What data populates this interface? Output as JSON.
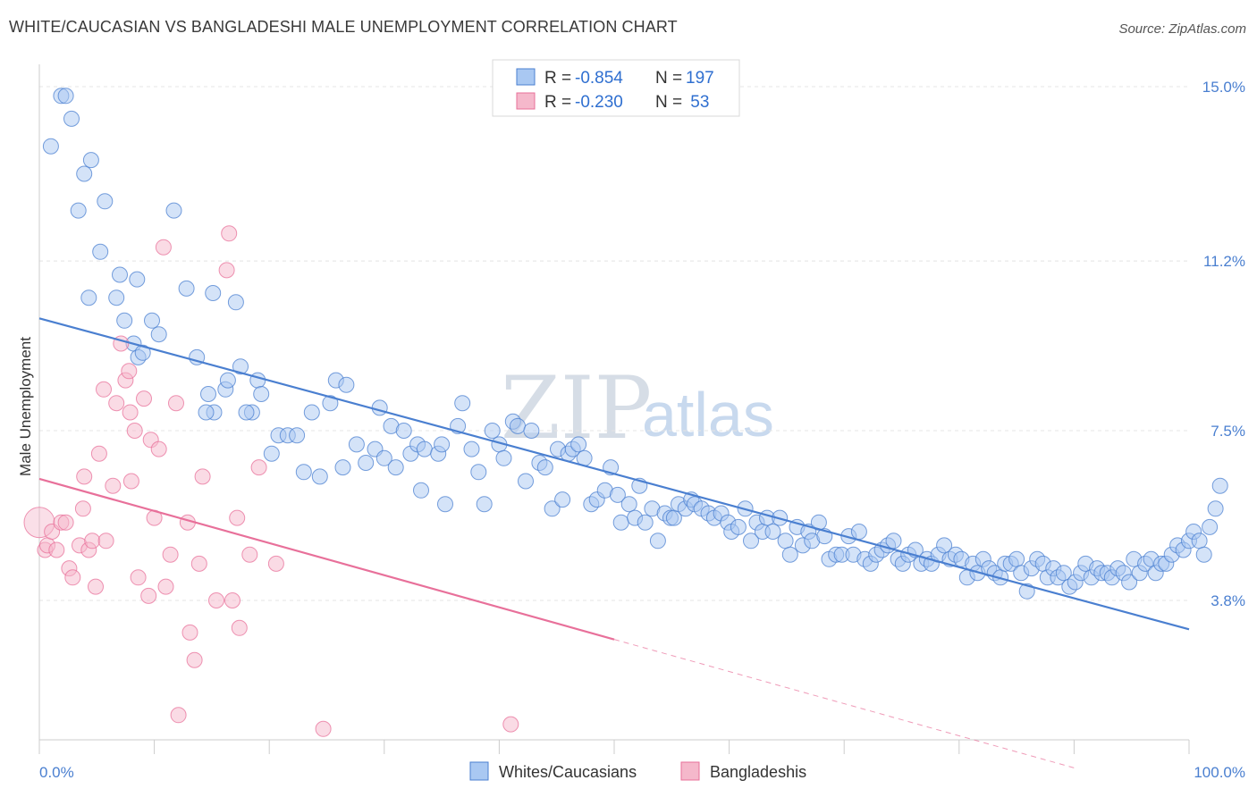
{
  "title": "WHITE/CAUCASIAN VS BANGLADESHI MALE UNEMPLOYMENT CORRELATION CHART",
  "source": "Source: ZipAtlas.com",
  "watermark": {
    "zip": "ZIP",
    "atlas": "atlas"
  },
  "legend_top": [
    {
      "r_label": "R = ",
      "r_value": "-0.854",
      "n_label": "N = ",
      "n_value": "197",
      "color": "#a9c8f2"
    },
    {
      "r_label": "R = ",
      "r_value": "-0.230",
      "n_label": "N = ",
      "n_value": " 53",
      "color": "#f5b8cb"
    }
  ],
  "legend_bottom": [
    "Whites/Caucasians",
    "Bangladeshis"
  ],
  "chart_data": {
    "type": "scatter",
    "title": "WHITE/CAUCASIAN VS BANGLADESHI MALE UNEMPLOYMENT CORRELATION CHART",
    "xlabel": "",
    "ylabel": "Male Unemployment",
    "xlim": [
      0,
      100
    ],
    "ylim": [
      0.0,
      15.5
    ],
    "x_tick_labels": [
      "0.0%",
      "100.0%"
    ],
    "y_ticks": [
      3.8,
      7.5,
      11.2,
      15.0
    ],
    "y_tick_labels": [
      "3.8%",
      "7.5%",
      "11.2%",
      "15.0%"
    ],
    "grid": true,
    "legend_position": "top-center",
    "series": [
      {
        "name": "Whites/Caucasians",
        "color": "#4a7fd0",
        "fill": "#a9c8f2",
        "trend": {
          "x": [
            0,
            100
          ],
          "y": [
            9.95,
            3.17
          ]
        },
        "points": [
          [
            1.0,
            13.7
          ],
          [
            1.9,
            14.8
          ],
          [
            2.3,
            14.8
          ],
          [
            2.8,
            14.3
          ],
          [
            3.4,
            12.3
          ],
          [
            3.9,
            13.1
          ],
          [
            4.5,
            13.4
          ],
          [
            5.3,
            11.4
          ],
          [
            5.7,
            12.5
          ],
          [
            4.3,
            10.4
          ],
          [
            6.7,
            10.4
          ],
          [
            7.0,
            10.9
          ],
          [
            7.4,
            9.9
          ],
          [
            8.5,
            10.8
          ],
          [
            8.2,
            9.4
          ],
          [
            9.8,
            9.9
          ],
          [
            10.4,
            9.6
          ],
          [
            8.6,
            9.1
          ],
          [
            9.0,
            9.2
          ],
          [
            11.7,
            12.3
          ],
          [
            12.8,
            10.6
          ],
          [
            13.7,
            9.1
          ],
          [
            14.7,
            8.3
          ],
          [
            15.2,
            7.9
          ],
          [
            16.2,
            8.4
          ],
          [
            14.5,
            7.9
          ],
          [
            15.1,
            10.5
          ],
          [
            17.1,
            10.3
          ],
          [
            16.4,
            8.6
          ],
          [
            17.5,
            8.9
          ],
          [
            18.5,
            7.9
          ],
          [
            18.0,
            7.9
          ],
          [
            19.0,
            8.6
          ],
          [
            19.3,
            8.3
          ],
          [
            20.2,
            7.0
          ],
          [
            20.8,
            7.4
          ],
          [
            21.6,
            7.4
          ],
          [
            22.4,
            7.4
          ],
          [
            23.0,
            6.6
          ],
          [
            23.7,
            7.9
          ],
          [
            24.4,
            6.5
          ],
          [
            25.3,
            8.1
          ],
          [
            25.8,
            8.6
          ],
          [
            26.4,
            6.7
          ],
          [
            26.7,
            8.5
          ],
          [
            27.6,
            7.2
          ],
          [
            28.4,
            6.8
          ],
          [
            29.2,
            7.1
          ],
          [
            29.6,
            8.0
          ],
          [
            30.0,
            6.9
          ],
          [
            30.6,
            7.6
          ],
          [
            31.0,
            6.7
          ],
          [
            31.7,
            7.5
          ],
          [
            32.3,
            7.0
          ],
          [
            32.9,
            7.2
          ],
          [
            33.5,
            7.1
          ],
          [
            33.2,
            6.2
          ],
          [
            34.7,
            7.0
          ],
          [
            35.3,
            5.9
          ],
          [
            35.0,
            7.2
          ],
          [
            36.4,
            7.6
          ],
          [
            36.8,
            8.1
          ],
          [
            37.6,
            7.1
          ],
          [
            38.2,
            6.6
          ],
          [
            38.7,
            5.9
          ],
          [
            39.4,
            7.5
          ],
          [
            40.0,
            7.2
          ],
          [
            40.4,
            6.9
          ],
          [
            41.2,
            7.7
          ],
          [
            41.6,
            7.6
          ],
          [
            42.3,
            6.4
          ],
          [
            42.8,
            7.5
          ],
          [
            43.5,
            6.8
          ],
          [
            44.0,
            6.7
          ],
          [
            44.6,
            5.8
          ],
          [
            45.1,
            7.1
          ],
          [
            45.5,
            6.0
          ],
          [
            46.0,
            7.0
          ],
          [
            46.4,
            7.1
          ],
          [
            46.9,
            7.2
          ],
          [
            47.4,
            6.9
          ],
          [
            48.0,
            5.9
          ],
          [
            48.5,
            6.0
          ],
          [
            49.2,
            6.2
          ],
          [
            49.7,
            6.7
          ],
          [
            50.3,
            6.1
          ],
          [
            50.6,
            5.5
          ],
          [
            51.3,
            5.9
          ],
          [
            51.8,
            5.6
          ],
          [
            52.2,
            6.3
          ],
          [
            52.7,
            5.5
          ],
          [
            53.3,
            5.8
          ],
          [
            53.8,
            5.1
          ],
          [
            54.4,
            5.7
          ],
          [
            54.9,
            5.6
          ],
          [
            55.2,
            5.6
          ],
          [
            55.6,
            5.9
          ],
          [
            56.2,
            5.8
          ],
          [
            56.7,
            6.0
          ],
          [
            57.0,
            5.9
          ],
          [
            57.6,
            5.8
          ],
          [
            58.2,
            5.7
          ],
          [
            58.7,
            5.6
          ],
          [
            59.3,
            5.7
          ],
          [
            59.9,
            5.5
          ],
          [
            60.2,
            5.3
          ],
          [
            60.8,
            5.4
          ],
          [
            61.4,
            5.8
          ],
          [
            61.9,
            5.1
          ],
          [
            62.4,
            5.5
          ],
          [
            62.9,
            5.3
          ],
          [
            63.3,
            5.6
          ],
          [
            63.8,
            5.3
          ],
          [
            64.4,
            5.6
          ],
          [
            64.9,
            5.1
          ],
          [
            65.3,
            4.8
          ],
          [
            65.9,
            5.4
          ],
          [
            66.4,
            5.0
          ],
          [
            66.9,
            5.3
          ],
          [
            67.2,
            5.1
          ],
          [
            67.8,
            5.5
          ],
          [
            68.3,
            5.2
          ],
          [
            68.7,
            4.7
          ],
          [
            69.3,
            4.8
          ],
          [
            69.8,
            4.8
          ],
          [
            70.4,
            5.2
          ],
          [
            70.8,
            4.8
          ],
          [
            71.3,
            5.3
          ],
          [
            71.8,
            4.7
          ],
          [
            72.3,
            4.6
          ],
          [
            72.8,
            4.8
          ],
          [
            73.3,
            4.9
          ],
          [
            73.8,
            5.0
          ],
          [
            74.3,
            5.1
          ],
          [
            74.7,
            4.7
          ],
          [
            75.1,
            4.6
          ],
          [
            75.6,
            4.8
          ],
          [
            76.2,
            4.9
          ],
          [
            76.7,
            4.6
          ],
          [
            77.2,
            4.7
          ],
          [
            77.6,
            4.6
          ],
          [
            78.2,
            4.8
          ],
          [
            78.7,
            5.0
          ],
          [
            79.2,
            4.7
          ],
          [
            79.7,
            4.8
          ],
          [
            80.2,
            4.7
          ],
          [
            80.7,
            4.3
          ],
          [
            81.2,
            4.6
          ],
          [
            81.6,
            4.4
          ],
          [
            82.1,
            4.7
          ],
          [
            82.6,
            4.5
          ],
          [
            83.1,
            4.4
          ],
          [
            83.6,
            4.3
          ],
          [
            84.0,
            4.6
          ],
          [
            84.5,
            4.6
          ],
          [
            85.0,
            4.7
          ],
          [
            85.4,
            4.4
          ],
          [
            85.9,
            4.0
          ],
          [
            86.3,
            4.5
          ],
          [
            86.8,
            4.7
          ],
          [
            87.3,
            4.6
          ],
          [
            87.7,
            4.3
          ],
          [
            88.2,
            4.5
          ],
          [
            88.6,
            4.3
          ],
          [
            89.1,
            4.4
          ],
          [
            89.6,
            4.1
          ],
          [
            90.1,
            4.2
          ],
          [
            90.6,
            4.4
          ],
          [
            91.0,
            4.6
          ],
          [
            91.5,
            4.3
          ],
          [
            92.0,
            4.5
          ],
          [
            92.4,
            4.4
          ],
          [
            92.9,
            4.4
          ],
          [
            93.3,
            4.3
          ],
          [
            93.8,
            4.5
          ],
          [
            94.3,
            4.4
          ],
          [
            94.8,
            4.2
          ],
          [
            95.2,
            4.7
          ],
          [
            95.7,
            4.4
          ],
          [
            96.2,
            4.6
          ],
          [
            96.7,
            4.7
          ],
          [
            97.1,
            4.4
          ],
          [
            97.6,
            4.6
          ],
          [
            98.0,
            4.6
          ],
          [
            98.5,
            4.8
          ],
          [
            99.0,
            5.0
          ],
          [
            99.5,
            4.9
          ],
          [
            100.0,
            5.1
          ],
          [
            100.4,
            5.3
          ],
          [
            100.9,
            5.1
          ],
          [
            101.3,
            4.8
          ],
          [
            101.8,
            5.4
          ],
          [
            102.3,
            5.8
          ],
          [
            102.7,
            6.3
          ]
        ]
      },
      {
        "name": "Bangladeshis",
        "color": "#e8709a",
        "fill": "#f5b8cb",
        "trend": {
          "x": [
            0,
            50
          ],
          "y": [
            6.45,
            2.95
          ]
        },
        "trend_dashed": {
          "x": [
            50,
            90
          ],
          "y": [
            2.95,
            0.15
          ]
        },
        "points": [
          [
            0.0,
            5.5
          ],
          [
            0.5,
            4.9
          ],
          [
            0.7,
            5.0
          ],
          [
            1.1,
            5.3
          ],
          [
            1.5,
            4.9
          ],
          [
            1.9,
            5.5
          ],
          [
            2.3,
            5.5
          ],
          [
            2.6,
            4.5
          ],
          [
            2.9,
            4.3
          ],
          [
            3.5,
            5.0
          ],
          [
            3.8,
            5.8
          ],
          [
            3.9,
            6.5
          ],
          [
            4.3,
            4.9
          ],
          [
            4.6,
            5.1
          ],
          [
            4.9,
            4.1
          ],
          [
            5.2,
            7.0
          ],
          [
            5.6,
            8.4
          ],
          [
            5.8,
            5.1
          ],
          [
            6.4,
            6.3
          ],
          [
            6.7,
            8.1
          ],
          [
            7.1,
            9.4
          ],
          [
            7.5,
            8.6
          ],
          [
            7.8,
            8.8
          ],
          [
            7.9,
            7.9
          ],
          [
            8.0,
            6.4
          ],
          [
            8.3,
            7.5
          ],
          [
            8.6,
            4.3
          ],
          [
            9.1,
            8.2
          ],
          [
            9.5,
            3.9
          ],
          [
            9.7,
            7.3
          ],
          [
            10.0,
            5.6
          ],
          [
            10.4,
            7.1
          ],
          [
            10.8,
            11.5
          ],
          [
            11.0,
            4.1
          ],
          [
            11.4,
            4.8
          ],
          [
            11.9,
            8.1
          ],
          [
            12.1,
            1.3
          ],
          [
            12.9,
            5.5
          ],
          [
            13.1,
            3.1
          ],
          [
            13.5,
            2.5
          ],
          [
            13.9,
            4.6
          ],
          [
            14.2,
            6.5
          ],
          [
            15.4,
            3.8
          ],
          [
            16.3,
            11.0
          ],
          [
            16.5,
            11.8
          ],
          [
            16.8,
            3.8
          ],
          [
            17.2,
            5.6
          ],
          [
            17.4,
            3.2
          ],
          [
            18.3,
            4.8
          ],
          [
            19.1,
            6.7
          ],
          [
            20.6,
            4.6
          ],
          [
            24.7,
            1.0
          ],
          [
            41.0,
            1.1
          ]
        ]
      }
    ]
  }
}
